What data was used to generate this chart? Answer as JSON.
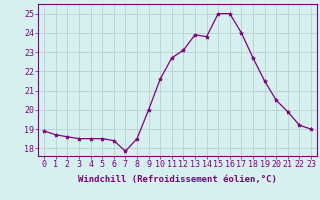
{
  "x": [
    0,
    1,
    2,
    3,
    4,
    5,
    6,
    7,
    8,
    9,
    10,
    11,
    12,
    13,
    14,
    15,
    16,
    17,
    18,
    19,
    20,
    21,
    22,
    23
  ],
  "y": [
    18.9,
    18.7,
    18.6,
    18.5,
    18.5,
    18.5,
    18.4,
    17.85,
    18.5,
    20.0,
    21.6,
    22.7,
    23.1,
    23.9,
    23.8,
    25.0,
    25.0,
    24.0,
    22.7,
    21.5,
    20.5,
    19.9,
    19.2,
    19.0
  ],
  "line_color": "#800080",
  "marker": "*",
  "marker_size": 3,
  "bg_color": "#d6f0f0",
  "grid_color": "#b0c8c8",
  "ylabel_ticks": [
    18,
    19,
    20,
    21,
    22,
    23,
    24,
    25
  ],
  "xlabel_ticks": [
    0,
    1,
    2,
    3,
    4,
    5,
    6,
    7,
    8,
    9,
    10,
    11,
    12,
    13,
    14,
    15,
    16,
    17,
    18,
    19,
    20,
    21,
    22,
    23
  ],
  "xlabel_labels": [
    "0",
    "1",
    "2",
    "3",
    "4",
    "5",
    "6",
    "7",
    "8",
    "9",
    "10",
    "11",
    "12",
    "13",
    "14",
    "15",
    "16",
    "17",
    "18",
    "19",
    "20",
    "21",
    "22",
    "23"
  ],
  "xlabel": "Windchill (Refroidissement éolien,°C)",
  "ylim": [
    17.6,
    25.5
  ],
  "xlim": [
    -0.5,
    23.5
  ],
  "label_fontsize": 6.5,
  "tick_fontsize": 6
}
